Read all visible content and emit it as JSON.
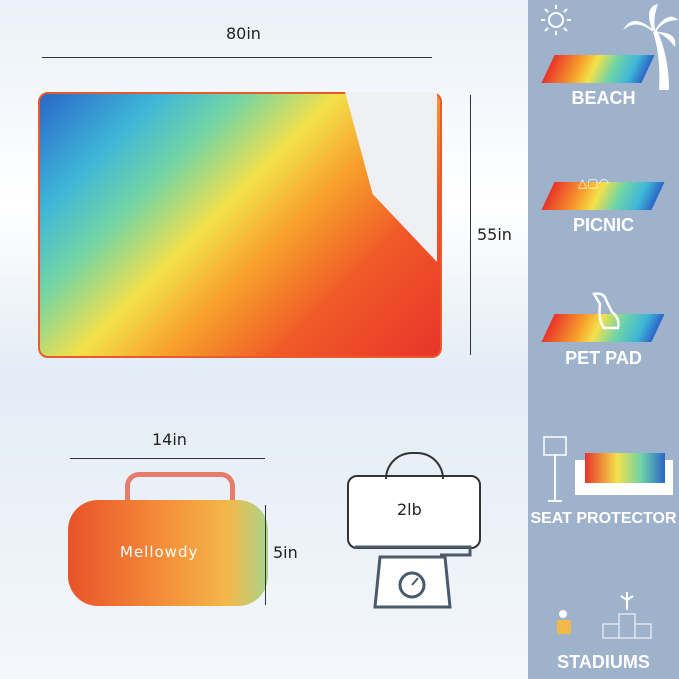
{
  "dimensions": {
    "blanket_width": "80in",
    "blanket_height": "55in",
    "bag_width": "14in",
    "bag_height": "5in",
    "weight": "2lb"
  },
  "brand": "Mellowdy",
  "uses": [
    {
      "label": "BEACH",
      "icon": "palm-tree-icon"
    },
    {
      "label": "PICNIC",
      "icon": "picnic-icon"
    },
    {
      "label": "PET PAD",
      "icon": "dog-icon"
    },
    {
      "label": "SEAT PROTECTOR",
      "icon": "sofa-icon"
    },
    {
      "label": "STADIUMS",
      "icon": "podium-icon"
    }
  ]
}
